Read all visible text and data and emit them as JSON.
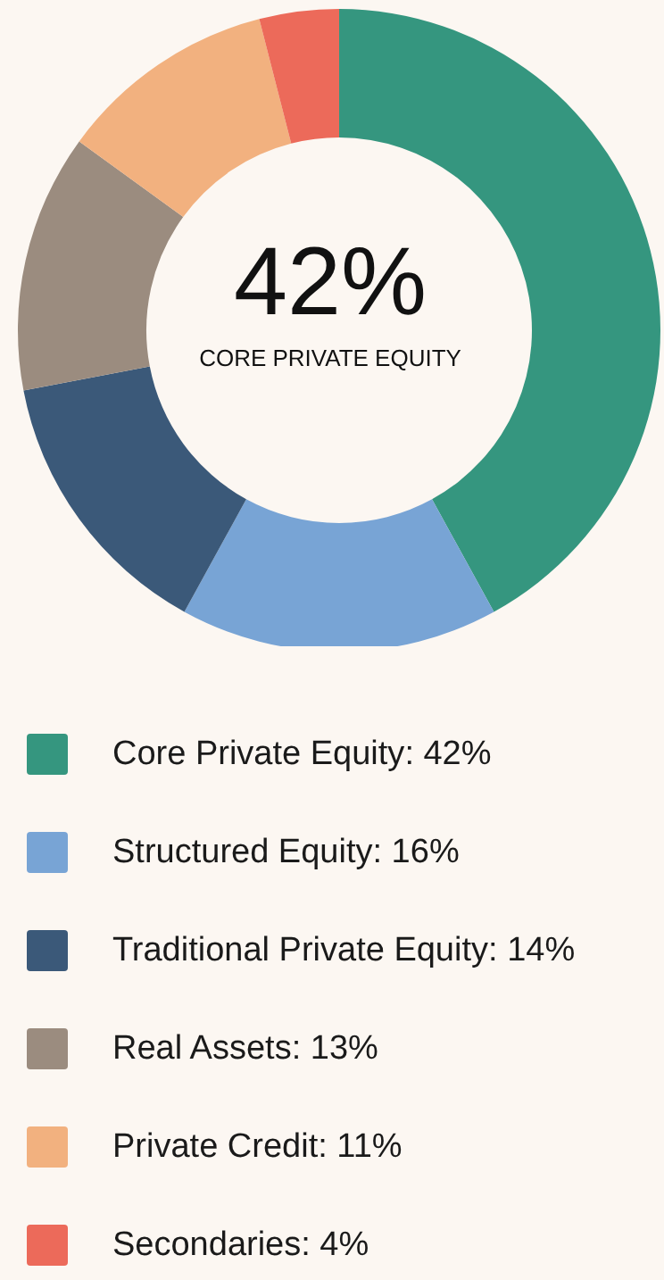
{
  "chart_data": {
    "type": "donut",
    "categories": [
      "Core Private Equity",
      "Structured Equity",
      "Traditional Private Equity",
      "Real Assets",
      "Private Credit",
      "Secondaries"
    ],
    "values": [
      42,
      16,
      14,
      13,
      11,
      4
    ],
    "value_labels": [
      ": 42%",
      ": 16%",
      ": 14%",
      ": 13%",
      ": 11%",
      ": 4%"
    ],
    "colors": [
      "#35967f",
      "#78a4d5",
      "#3b5979",
      "#9b8c7f",
      "#f2b17f",
      "#ec6a5a"
    ],
    "annotations": [
      "42%",
      "CORE PRIVATE EQUITY"
    ],
    "legend": "bottom"
  }
}
